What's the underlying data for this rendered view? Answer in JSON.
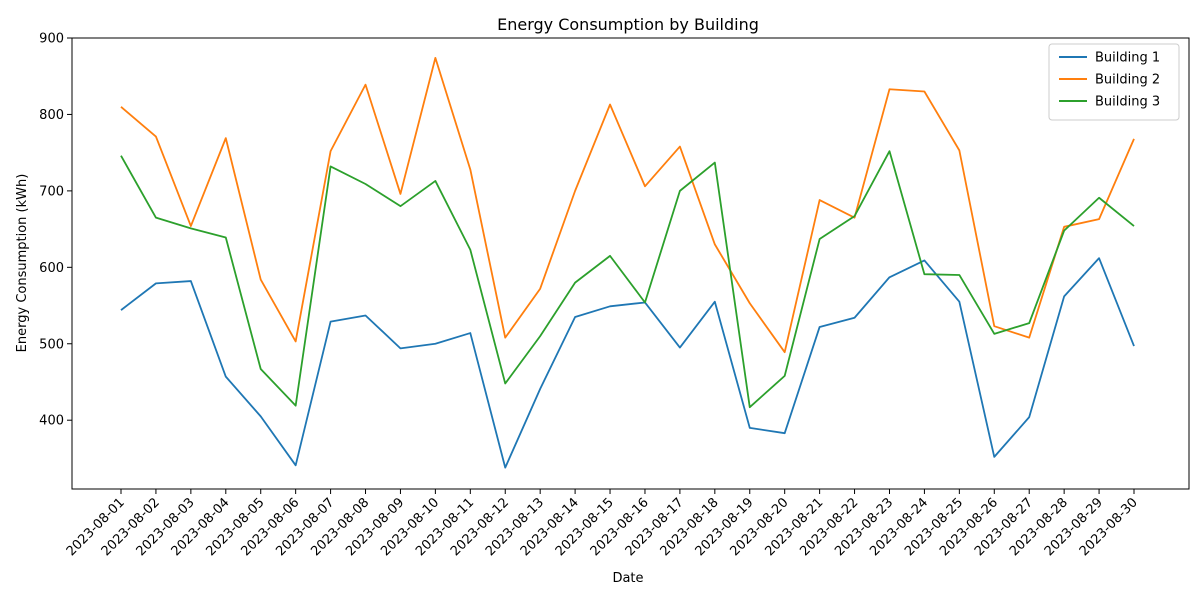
{
  "chart_data": {
    "type": "line",
    "title": "Energy Consumption by Building",
    "xlabel": "Date",
    "ylabel": "Energy Consumption (kWh)",
    "ylim": [
      310,
      900
    ],
    "yticks": [
      400,
      500,
      600,
      700,
      800,
      900
    ],
    "legend_position": "top-right",
    "grid": false,
    "x": [
      "2023-08-01",
      "2023-08-02",
      "2023-08-03",
      "2023-08-04",
      "2023-08-05",
      "2023-08-06",
      "2023-08-07",
      "2023-08-08",
      "2023-08-09",
      "2023-08-10",
      "2023-08-11",
      "2023-08-12",
      "2023-08-13",
      "2023-08-14",
      "2023-08-15",
      "2023-08-16",
      "2023-08-17",
      "2023-08-18",
      "2023-08-19",
      "2023-08-20",
      "2023-08-21",
      "2023-08-22",
      "2023-08-23",
      "2023-08-24",
      "2023-08-25",
      "2023-08-26",
      "2023-08-27",
      "2023-08-28",
      "2023-08-29",
      "2023-08-30"
    ],
    "series": [
      {
        "name": "Building 1",
        "color": "#1f77b4",
        "values": [
          544,
          579,
          582,
          457,
          405,
          341,
          529,
          537,
          494,
          500,
          514,
          338,
          441,
          535,
          549,
          554,
          495,
          555,
          390,
          383,
          522,
          534,
          587,
          609,
          555,
          352,
          404,
          562,
          612,
          497
        ]
      },
      {
        "name": "Building 2",
        "color": "#ff7f0e",
        "values": [
          810,
          771,
          654,
          769,
          584,
          503,
          752,
          839,
          696,
          874,
          728,
          508,
          572,
          700,
          813,
          706,
          758,
          630,
          553,
          489,
          688,
          665,
          833,
          830,
          753,
          523,
          508,
          653,
          663,
          768
        ]
      },
      {
        "name": "Building 3",
        "color": "#2ca02c",
        "values": [
          746,
          665,
          651,
          639,
          467,
          419,
          732,
          709,
          680,
          713,
          623,
          448,
          510,
          580,
          615,
          554,
          700,
          737,
          417,
          458,
          637,
          667,
          752,
          591,
          590,
          513,
          527,
          648,
          691,
          654
        ]
      }
    ]
  }
}
